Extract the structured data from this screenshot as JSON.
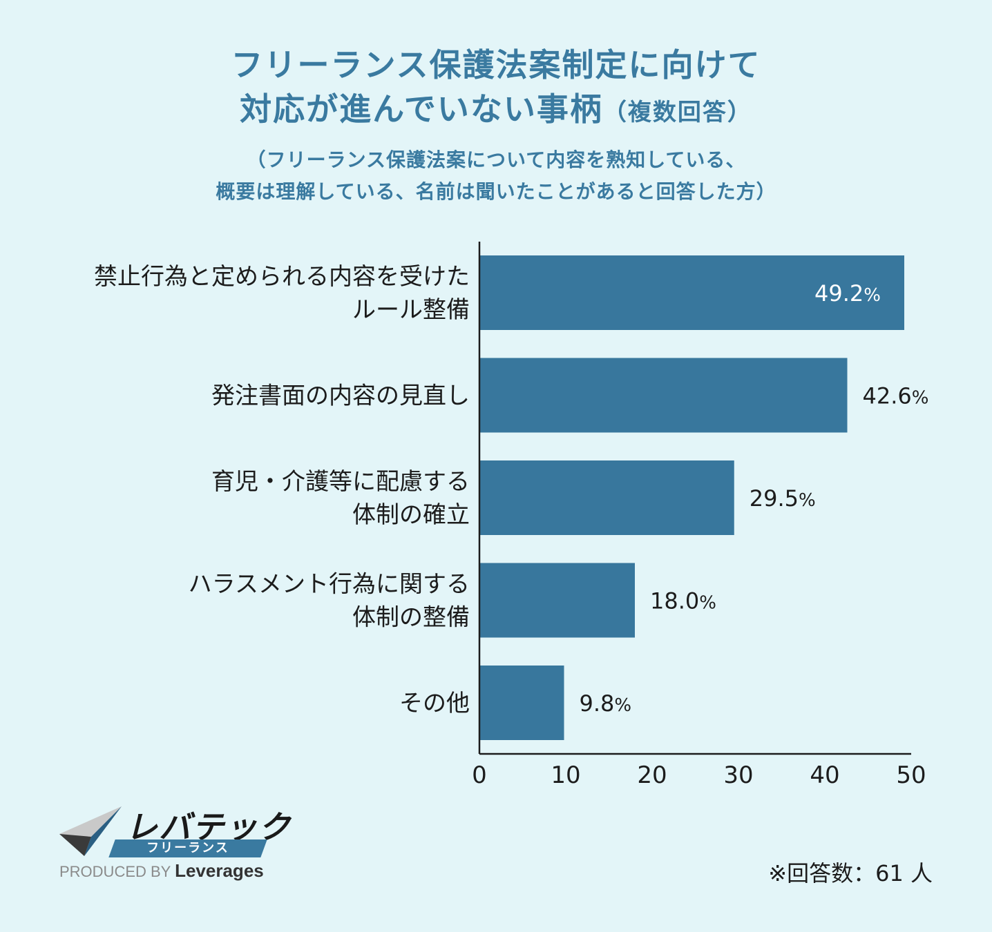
{
  "title": {
    "line1": "フリーランス保護法案制定に向けて",
    "line2_main": "対応が進んでいない事柄",
    "line2_paren": "（複数回答）"
  },
  "subtitle": {
    "line1": "（フリーランス保護法案について内容を熟知している、",
    "line2": "概要は理解している、名前は聞いたことがあると回答した方）"
  },
  "colors": {
    "background": "#e3f5f8",
    "title": "#3a7aa0",
    "bar": "#38779d",
    "axis": "#1c1c1c",
    "inside_label": "#ffffff"
  },
  "chart_data": {
    "type": "bar",
    "orientation": "horizontal",
    "categories": [
      [
        "禁止行為と定められる内容を受けた",
        "ルール整備"
      ],
      [
        "発注書面の内容の見直し"
      ],
      [
        "育児・介護等に配慮する",
        "体制の確立"
      ],
      [
        "ハラスメント行為に関する",
        "体制の整備"
      ],
      [
        "その他"
      ]
    ],
    "values": [
      49.2,
      42.6,
      29.5,
      18.0,
      9.8
    ],
    "value_labels": [
      "49.2",
      "42.6",
      "29.5",
      "18.0",
      "9.8"
    ],
    "value_suffix": "%",
    "xlim": [
      0,
      50
    ],
    "xticks": [
      0,
      10,
      20,
      30,
      40,
      50
    ],
    "grid": false,
    "legend": "none"
  },
  "logo": {
    "name": "レバテック",
    "sub": "フリーランス",
    "produced_by": "PRODUCED BY",
    "brand": "Leverages"
  },
  "note": "※回答数：61 人"
}
